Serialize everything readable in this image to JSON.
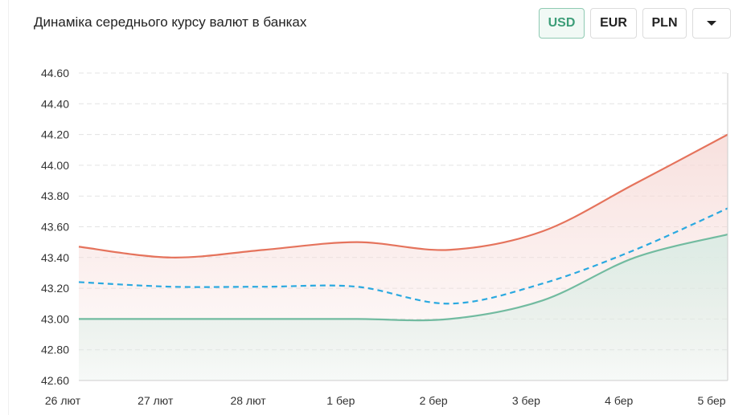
{
  "controls": {
    "currencies": [
      "USD",
      "EUR",
      "PLN"
    ]
  },
  "chart_data": {
    "type": "line",
    "title": "Динаміка середнього курсу валют в банках",
    "categories": [
      "26 лют",
      "27 лют",
      "28 лют",
      "1 бер",
      "2 бер",
      "3 бер",
      "4 бер",
      "5 бер"
    ],
    "series": [
      {
        "color": "#e5735c",
        "values": [
          43.47,
          43.4,
          43.45,
          43.5,
          43.45,
          43.57,
          43.88,
          44.2
        ],
        "fill": "#f6d9d6"
      },
      {
        "color": "#2aa9e0",
        "dashed": true,
        "values": [
          43.24,
          43.21,
          43.21,
          43.21,
          43.1,
          43.23,
          43.45,
          43.72
        ]
      },
      {
        "color": "#72bba0",
        "values": [
          43.0,
          43.0,
          43.0,
          43.0,
          43.0,
          43.12,
          43.4,
          43.55
        ],
        "fill": "#d9ece4"
      }
    ],
    "ylim": [
      42.6,
      44.6
    ],
    "yticks": [
      {
        "value": 42.6,
        "label": "42.60"
      },
      {
        "value": 42.8,
        "label": "42.80"
      },
      {
        "value": 43.0,
        "label": "43.00"
      },
      {
        "value": 43.2,
        "label": "43.20"
      },
      {
        "value": 43.4,
        "label": "43.40"
      },
      {
        "value": 43.6,
        "label": "43.60"
      },
      {
        "value": 43.8,
        "label": "43.80"
      },
      {
        "value": 44.0,
        "label": "44.00"
      },
      {
        "value": 44.2,
        "label": "44.20"
      },
      {
        "value": 44.4,
        "label": "44.40"
      },
      {
        "value": 44.6,
        "label": "44.60"
      }
    ],
    "grid": true
  }
}
